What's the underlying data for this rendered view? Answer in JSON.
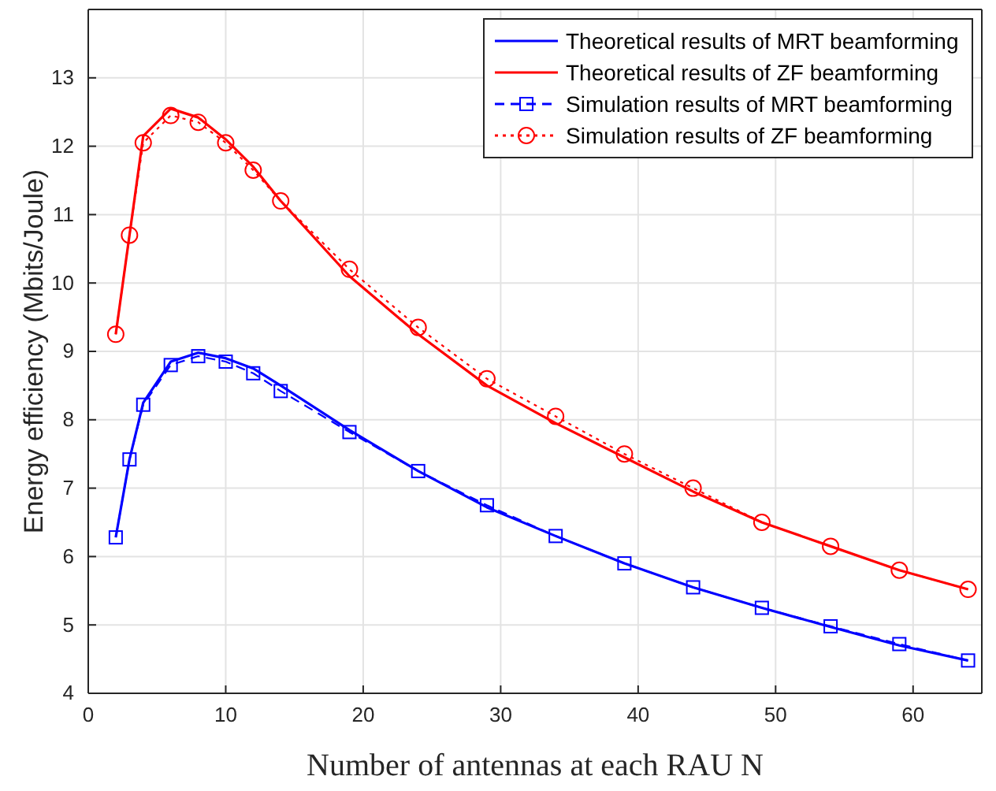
{
  "chart_data": {
    "type": "line",
    "xlabel": "Number of antennas at each RAU N",
    "ylabel": "Energy efficiency (Mbits/Joule)",
    "x": [
      2,
      3,
      4,
      6,
      8,
      10,
      12,
      14,
      19,
      24,
      29,
      34,
      39,
      44,
      49,
      54,
      59,
      64
    ],
    "xlim": [
      0,
      65
    ],
    "xticks": [
      0,
      10,
      20,
      30,
      40,
      50,
      60
    ],
    "ylim": [
      4,
      14
    ],
    "yticks": [
      4,
      5,
      6,
      7,
      8,
      9,
      10,
      11,
      12,
      13
    ],
    "grid": true,
    "legend": "top right",
    "series": [
      {
        "name": "Theoretical results of MRT beamforming",
        "color": "#0000ff",
        "line_style": "solid",
        "marker": "none",
        "values": [
          6.28,
          7.42,
          8.25,
          8.85,
          8.98,
          8.9,
          8.75,
          8.5,
          7.85,
          7.25,
          6.72,
          6.3,
          5.9,
          5.55,
          5.25,
          4.97,
          4.7,
          4.48
        ]
      },
      {
        "name": "Theoretical results of ZF beamforming",
        "color": "#ff0000",
        "line_style": "solid",
        "marker": "none",
        "values": [
          9.25,
          10.7,
          12.15,
          12.55,
          12.42,
          12.1,
          11.7,
          11.2,
          10.1,
          9.25,
          8.5,
          7.95,
          7.45,
          6.95,
          6.5,
          6.15,
          5.8,
          5.52
        ]
      },
      {
        "name": "Simulation results of MRT beamforming",
        "color": "#0000ff",
        "line_style": "dashed",
        "marker": "square",
        "values": [
          6.28,
          7.42,
          8.22,
          8.8,
          8.93,
          8.85,
          8.68,
          8.42,
          7.82,
          7.25,
          6.75,
          6.3,
          5.9,
          5.55,
          5.25,
          4.98,
          4.72,
          4.48
        ]
      },
      {
        "name": "Simulation results of ZF beamforming",
        "color": "#ff0000",
        "line_style": "dotted",
        "marker": "circle",
        "values": [
          9.25,
          10.7,
          12.05,
          12.45,
          12.35,
          12.05,
          11.65,
          11.2,
          10.2,
          9.35,
          8.6,
          8.05,
          7.5,
          7.0,
          6.5,
          6.15,
          5.8,
          5.52
        ]
      }
    ]
  }
}
